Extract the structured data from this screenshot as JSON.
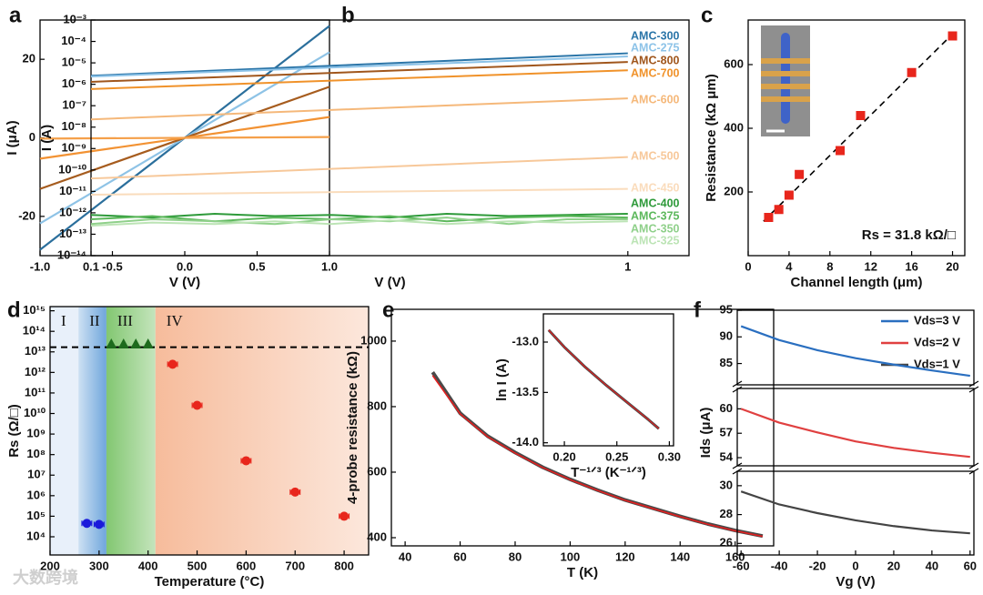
{
  "chart_data": [
    {
      "type": "line",
      "label": "a",
      "xlabel": "V (V)",
      "ylabel": "I (μA)",
      "xlim": [
        -1,
        1
      ],
      "ylim": [
        -30,
        30
      ],
      "xticks": [
        {
          "value": -1,
          "label": "-1.0"
        },
        {
          "value": -0.5,
          "label": "-0.5"
        },
        {
          "value": 0,
          "label": "0.0"
        },
        0.5,
        {
          "value": 1,
          "label": "1.0"
        }
      ],
      "yticks": [
        -20,
        0,
        20
      ],
      "x": [
        -1,
        1
      ],
      "series": [
        {
          "color": "#2b6f9c",
          "values": [
            -28.5,
            28.5
          ]
        },
        {
          "color": "#8ec3e6",
          "values": [
            -21.8,
            21.8
          ]
        },
        {
          "color": "#a65c1e",
          "values": [
            -13,
            13
          ]
        },
        {
          "color": "#f29233",
          "values": [
            -5.3,
            5.3
          ]
        },
        {
          "color": "#f5a04a",
          "values": [
            -0.2,
            0.2
          ]
        }
      ]
    },
    {
      "type": "line",
      "label": "b",
      "xlabel": "V (V)",
      "ylabel": "I (A)",
      "log_x": true,
      "log_y": true,
      "xlim": [
        0.1,
        1.3
      ],
      "ylim": [
        1e-14,
        0.001
      ],
      "xticks": [
        0.1,
        1
      ],
      "yticks": [
        {
          "value": 1e-14,
          "label": "10⁻¹⁴"
        },
        {
          "value": 1e-13,
          "label": "10⁻¹³"
        },
        {
          "value": 1e-12,
          "label": "10⁻¹²"
        },
        {
          "value": 1e-11,
          "label": "10⁻¹¹"
        },
        {
          "value": 1e-10,
          "label": "10⁻¹⁰"
        },
        {
          "value": 1e-09,
          "label": "10⁻⁹"
        },
        {
          "value": 1e-08,
          "label": "10⁻⁸"
        },
        {
          "value": 1e-07,
          "label": "10⁻⁷"
        },
        {
          "value": 1e-06,
          "label": "10⁻⁶"
        },
        {
          "value": 1e-05,
          "label": "10⁻⁵"
        },
        {
          "value": 0.0001,
          "label": "10⁻⁴"
        },
        {
          "value": 0.001,
          "label": "10⁻³"
        }
      ],
      "series": [
        {
          "name": "AMC-300",
          "color": "#2b75a8",
          "x": [
            0.1,
            1
          ],
          "values": [
            2.5e-06,
            2.8e-05
          ]
        },
        {
          "name": "AMC-275",
          "color": "#8dc3e8",
          "x": [
            0.1,
            1
          ],
          "values": [
            2.3e-06,
            2e-05
          ]
        },
        {
          "name": "AMC-800",
          "color": "#a0561c",
          "x": [
            0.1,
            1
          ],
          "values": [
            1.3e-06,
            1.1e-05
          ]
        },
        {
          "name": "AMC-700",
          "color": "#f0922a",
          "x": [
            0.1,
            1
          ],
          "values": [
            6e-07,
            4.5e-06
          ]
        },
        {
          "name": "AMC-600",
          "color": "#f5b87a",
          "x": [
            0.1,
            1
          ],
          "values": [
            2.3e-08,
            2.2e-07
          ]
        },
        {
          "name": "AMC-500",
          "color": "#f7c89a",
          "x": [
            0.1,
            1
          ],
          "values": [
            4e-11,
            4e-10
          ]
        },
        {
          "name": "AMC-450",
          "color": "#fadcbc",
          "x": [
            0.1,
            1
          ],
          "values": [
            7e-12,
            1.3e-11
          ]
        },
        {
          "name": "AMC-400",
          "color": "#2e9a3a",
          "x": [
            0.1,
            0.13,
            0.17,
            0.22,
            0.28,
            0.36,
            0.46,
            0.6,
            0.77,
            1
          ],
          "values": [
            8e-13,
            6e-13,
            9e-13,
            7e-13,
            8e-13,
            6e-13,
            9e-13,
            7e-13,
            8e-13,
            9e-13
          ]
        },
        {
          "name": "AMC-375",
          "color": "#5db85c",
          "x": [
            0.1,
            0.13,
            0.17,
            0.22,
            0.28,
            0.36,
            0.46,
            0.6,
            0.77,
            1
          ],
          "values": [
            5e-13,
            7e-13,
            4e-13,
            6e-13,
            5e-13,
            7e-13,
            4e-13,
            6e-13,
            7e-13,
            6e-13
          ]
        },
        {
          "name": "AMC-350",
          "color": "#8fd08a",
          "x": [
            0.1,
            0.13,
            0.17,
            0.22,
            0.28,
            0.36,
            0.46,
            0.6,
            0.77,
            1
          ],
          "values": [
            3e-13,
            5e-13,
            4e-13,
            3e-13,
            5e-13,
            4e-13,
            6e-13,
            3e-13,
            5e-13,
            5e-13
          ]
        },
        {
          "name": "AMC-325",
          "color": "#bce4b5",
          "x": [
            0.1,
            0.13,
            0.17,
            0.22,
            0.28,
            0.36,
            0.46,
            0.6,
            0.77,
            1
          ],
          "values": [
            2.5e-13,
            3.5e-13,
            3e-13,
            4e-13,
            3e-13,
            4.5e-13,
            3e-13,
            4e-13,
            3.5e-13,
            4e-13
          ]
        }
      ]
    },
    {
      "type": "scatter",
      "label": "c",
      "xlabel": "Channel length (μm)",
      "ylabel": "Resistance (kΩ μm)",
      "xlim": [
        0,
        21.2
      ],
      "ylim": [
        0,
        740
      ],
      "xticks": [
        0,
        4,
        8,
        12,
        16,
        20
      ],
      "yticks": [
        200,
        400,
        600
      ],
      "marker": "square",
      "color": "#e8261c",
      "x": [
        2,
        3,
        4,
        5,
        9,
        11,
        16,
        20
      ],
      "values": [
        120,
        145,
        190,
        255,
        330,
        440,
        575,
        690
      ],
      "fit": {
        "x": [
          1.5,
          20
        ],
        "values": [
          108,
          696
        ]
      },
      "annotation": "Rs = 31.8 kΩ/□"
    },
    {
      "type": "scatter",
      "label": "d",
      "xlabel": "Temperature (°C)",
      "ylabel": "Rs (Ω/□)",
      "log_y": true,
      "xlim": [
        200,
        850
      ],
      "ylim": [
        1300,
        1600000000000000.0
      ],
      "xticks": [
        200,
        300,
        400,
        500,
        600,
        700,
        800
      ],
      "yticks": [
        {
          "value": 10000.0,
          "label": "10⁴"
        },
        {
          "value": 100000.0,
          "label": "10⁵"
        },
        {
          "value": 1000000.0,
          "label": "10⁶"
        },
        {
          "value": 10000000.0,
          "label": "10⁷"
        },
        {
          "value": 100000000.0,
          "label": "10⁸"
        },
        {
          "value": 1000000000.0,
          "label": "10⁹"
        },
        {
          "value": 10000000000.0,
          "label": "10¹⁰"
        },
        {
          "value": 100000000000.0,
          "label": "10¹¹"
        },
        {
          "value": 1000000000000.0,
          "label": "10¹²"
        },
        {
          "value": 10000000000000.0,
          "label": "10¹³"
        },
        {
          "value": 100000000000000.0,
          "label": "10¹⁴"
        },
        {
          "value": 1000000000000000.0,
          "label": "10¹⁵"
        }
      ],
      "regions": [
        {
          "label": "I",
          "x": [
            200,
            258
          ],
          "color": "#e8f0fa"
        },
        {
          "label": "II",
          "x": [
            258,
            315
          ],
          "color": "#6fa6dc"
        },
        {
          "label": "III",
          "x": [
            315,
            415
          ],
          "color": "#7cc46a"
        },
        {
          "label": "IV",
          "x": [
            415,
            850
          ],
          "color": "#f5b08a"
        }
      ],
      "limit": 17000000000000.0,
      "series": [
        {
          "color": "#1a1adb",
          "marker": "circle",
          "xerr": 10,
          "x": [
            275,
            300
          ],
          "values": [
            45000.0,
            40000.0
          ]
        },
        {
          "color": "#e8261c",
          "marker": "circle",
          "xerr": 10,
          "x": [
            450,
            500,
            600,
            700,
            800
          ],
          "values": [
            2500000000000.0,
            25000000000.0,
            50000000.0,
            1500000.0,
            100000.0
          ]
        },
        {
          "color": "#1d6b1d",
          "marker": "triangle",
          "x": [
            325,
            350,
            375,
            400
          ],
          "values": [
            22000000000000.0,
            22000000000000.0,
            22000000000000.0,
            22000000000000.0
          ]
        }
      ]
    },
    {
      "type": "line",
      "label": "e",
      "xlabel": "T (K)",
      "ylabel": "4-probe resistance (kΩ)",
      "xlim": [
        35,
        174
      ],
      "ylim": [
        375,
        1097
      ],
      "xticks": [
        40,
        60,
        80,
        100,
        120,
        140,
        160
      ],
      "yticks": [
        400,
        600,
        800,
        1000
      ],
      "x": [
        50,
        60,
        70,
        80,
        90,
        100,
        110,
        120,
        130,
        140,
        150,
        160,
        170
      ],
      "series": [
        {
          "color": "#4a4a4a",
          "values": [
            905,
            780,
            710,
            660,
            615,
            578,
            545,
            515,
            490,
            465,
            442,
            422,
            405
          ]
        },
        {
          "color": "#e02020",
          "values": [
            895,
            778,
            708,
            658,
            614,
            577,
            544,
            514,
            489,
            464,
            441,
            421,
            404
          ]
        }
      ]
    },
    {
      "type": "line",
      "xlabel": "T⁻¹ᐟ³ (K⁻¹ᐟ³)",
      "ylabel": "ln I (A)",
      "xlim": [
        0.18,
        0.304
      ],
      "ylim": [
        -14.03,
        -12.72
      ],
      "xticks": [
        {
          "value": 0.2,
          "label": "0.20"
        },
        0.25,
        {
          "value": 0.3,
          "label": "0.30"
        }
      ],
      "yticks": [
        {
          "value": -13,
          "label": "-13.0"
        },
        -13.5,
        {
          "value": -14,
          "label": "-14.0"
        }
      ],
      "x": [
        0.185,
        0.2,
        0.22,
        0.24,
        0.26,
        0.28,
        0.29
      ],
      "series": [
        {
          "color": "#4a4a4a",
          "values": [
            -12.88,
            -13.05,
            -13.25,
            -13.43,
            -13.6,
            -13.77,
            -13.86
          ]
        },
        {
          "color": "#e02020",
          "values": [
            -12.88,
            -13.05,
            -13.25,
            -13.43,
            -13.6,
            -13.77,
            -13.86
          ]
        }
      ]
    },
    {
      "type": "line",
      "label": "f",
      "xlabel": "Vg (V)",
      "ylabel": "Ids (μA)",
      "xlim": [
        -62,
        62
      ],
      "xticks": [
        -60,
        -40,
        -20,
        0,
        20,
        40,
        60
      ],
      "ysegments": [
        {
          "ylim": [
            25.2,
            31
          ],
          "yticks": [
            26,
            28,
            30
          ]
        },
        {
          "ylim": [
            53,
            62.5
          ],
          "yticks": [
            54,
            57,
            60
          ]
        },
        {
          "ylim": [
            81,
            95
          ],
          "yticks": [
            85,
            90,
            95
          ]
        }
      ],
      "x": [
        -60,
        -40,
        -20,
        0,
        20,
        40,
        60
      ],
      "series": [
        {
          "name": "Vds=1 V",
          "color": "#444444",
          "values": [
            29.6,
            28.7,
            28.1,
            27.6,
            27.2,
            26.9,
            26.7
          ]
        },
        {
          "name": "Vds=2 V",
          "color": "#e04040",
          "values": [
            60,
            58.3,
            57.1,
            56,
            55.2,
            54.6,
            54.1
          ]
        },
        {
          "name": "Vds=3 V",
          "color": "#2a6fc0",
          "values": [
            92,
            89.4,
            87.5,
            86,
            84.8,
            83.7,
            82.7
          ]
        }
      ]
    }
  ],
  "watermark": "大数跨境"
}
